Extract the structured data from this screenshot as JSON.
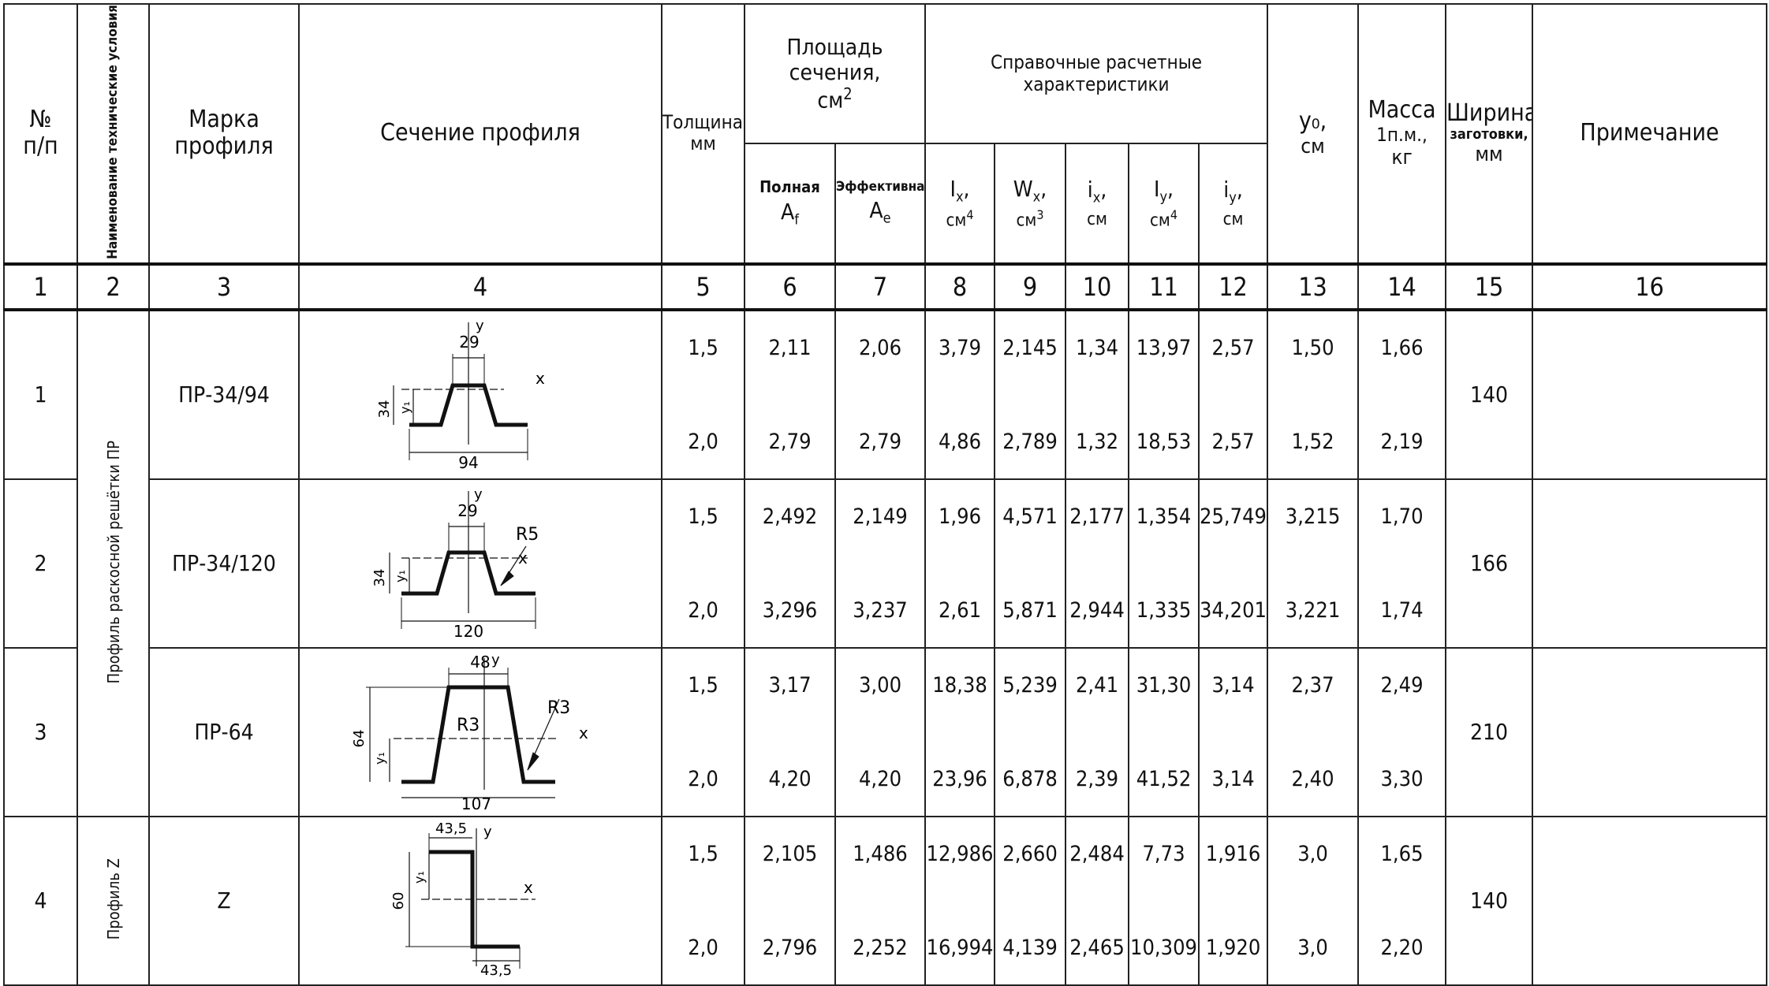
{
  "headers": {
    "n1": "№",
    "n2": "п/п",
    "name": "Наименование технические условия",
    "mark": "Марка профиля",
    "section": "Сечение профиля",
    "thick1": "Толщина,",
    "thick2": "мм",
    "area_line1": "Площадь сечения,",
    "area_unit": "см",
    "area_pow": "2",
    "area_full1": "Полная",
    "area_full2": "A",
    "area_full_sub": "f",
    "area_eff1": "Эффективная",
    "area_eff2": "A",
    "area_eff_sub": "e",
    "ref": "Справочные расчетные характеристики",
    "ix_sym": "I",
    "ix_sub": "x",
    "ix_unit": "см",
    "ix_pow": "4",
    "wx_sym": "W",
    "wx_sub": "x",
    "wx_unit": "см",
    "wx_pow": "3",
    "rx_sym": "i",
    "rx_sub": "x",
    "rx_unit": "см",
    "iy_sym": "I",
    "iy_sub": "y",
    "iy_unit": "см",
    "iy_pow": "4",
    "ry_sym": "i",
    "ry_sub": "y",
    "ry_unit": "см",
    "y0_1": "y₀,",
    "y0_2": "см",
    "mass1": "Масса",
    "mass2": "1п.м.,",
    "mass3": "кг",
    "width1": "Ширина",
    "width2": "заготовки,",
    "width3": "мм",
    "note": "Примечание"
  },
  "column_numbers": [
    "1",
    "2",
    "3",
    "4",
    "5",
    "6",
    "7",
    "8",
    "9",
    "10",
    "11",
    "12",
    "13",
    "14",
    "15",
    "16"
  ],
  "groups": {
    "g1": "Профиль раскосной решётки ПР",
    "g2": "Профиль Z"
  },
  "rows": [
    {
      "num": "1",
      "mark": "ПР-34/94",
      "width": "140",
      "thick": [
        "1,5",
        "2,0"
      ],
      "af": [
        "2,11",
        "2,79"
      ],
      "ae": [
        "2,06",
        "2,79"
      ],
      "ix": [
        "3,79",
        "4,86"
      ],
      "wx": [
        "2,145",
        "2,789"
      ],
      "rx": [
        "1,34",
        "1,32"
      ],
      "iy": [
        "13,97",
        "18,53"
      ],
      "ry": [
        "2,57",
        "2,57"
      ],
      "y0": [
        "1,50",
        "1,52"
      ],
      "mass": [
        "1,66",
        "2,19"
      ],
      "dims": {
        "top": "29",
        "h": "34",
        "b": "94",
        "y1": "y₁",
        "ax": "x",
        "ay": "y"
      }
    },
    {
      "num": "2",
      "mark": "ПР-34/120",
      "width": "166",
      "thick": [
        "1,5",
        "2,0"
      ],
      "af": [
        "2,492",
        "3,296"
      ],
      "ae": [
        "2,149",
        "3,237"
      ],
      "ix": [
        "1,96",
        "2,61"
      ],
      "wx": [
        "4,571",
        "5,871"
      ],
      "rx": [
        "2,177",
        "2,944"
      ],
      "iy": [
        "1,354",
        "1,335"
      ],
      "ry": [
        "25,749",
        "34,201"
      ],
      "y0": [
        "3,215",
        "3,221"
      ],
      "mass": [
        "1,70",
        "1,74"
      ],
      "dims": {
        "top": "29",
        "h": "34",
        "b": "120",
        "y1": "y₁",
        "ax": "x",
        "ay": "y",
        "r": "R5"
      }
    },
    {
      "num": "3",
      "mark": "ПР-64",
      "width": "210",
      "thick": [
        "1,5",
        "2,0"
      ],
      "af": [
        "3,17",
        "4,20"
      ],
      "ae": [
        "3,00",
        "4,20"
      ],
      "ix": [
        "18,38",
        "23,96"
      ],
      "wx": [
        "5,239",
        "6,878"
      ],
      "rx": [
        "2,41",
        "2,39"
      ],
      "iy": [
        "31,30",
        "41,52"
      ],
      "ry": [
        "3,14",
        "3,14"
      ],
      "y0": [
        "2,37",
        "2,40"
      ],
      "mass": [
        "2,49",
        "3,30"
      ],
      "dims": {
        "top": "48",
        "h": "64",
        "b": "107",
        "y1": "y₁",
        "ax": "x",
        "ay": "y",
        "r": "R3",
        "r2": "R3"
      }
    },
    {
      "num": "4",
      "mark": "Z",
      "width": "140",
      "thick": [
        "1,5",
        "2,0"
      ],
      "af": [
        "2,105",
        "2,796"
      ],
      "ae": [
        "1,486",
        "2,252"
      ],
      "ix": [
        "12,986",
        "16,994"
      ],
      "wx": [
        "2,660",
        "4,139"
      ],
      "rx": [
        "2,484",
        "2,465"
      ],
      "iy": [
        "7,73",
        "10,309"
      ],
      "ry": [
        "1,916",
        "1,920"
      ],
      "y0": [
        "3,0",
        "3,0"
      ],
      "mass": [
        "1,65",
        "2,20"
      ],
      "dims": {
        "top": "43,5",
        "h": "60",
        "b": "43,5",
        "y1": "y₁",
        "ax": "x",
        "ay": "y"
      }
    }
  ]
}
